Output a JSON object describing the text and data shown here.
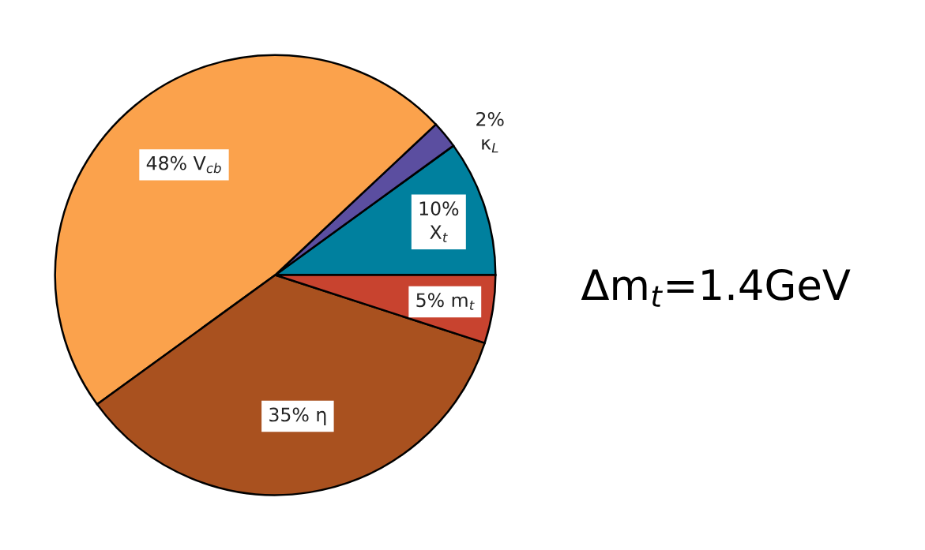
{
  "chart_data": {
    "type": "pie",
    "categories": [
      "10%\nX$_{t}$",
      "2%\nκ$_{L}$",
      "48% V$_{cb}$",
      "35% η",
      "5% m$_{t}$"
    ],
    "values": [
      10,
      2,
      48,
      35,
      5
    ],
    "colors": [
      "#00809e",
      "#5b4ea0",
      "#fba24c",
      "#a9511f",
      "#c8432f"
    ],
    "annotations": [
      "Δm$_{t}$=1.4GeV"
    ]
  }
}
